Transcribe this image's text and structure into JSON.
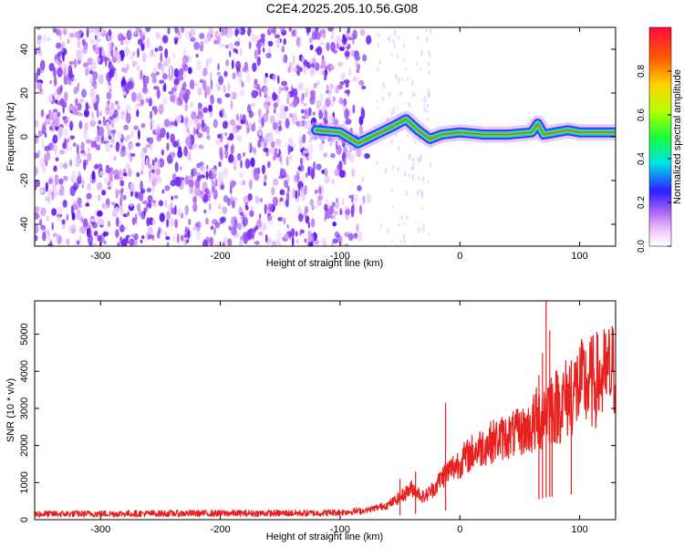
{
  "title": "C2E4.2025.205.10.56.G08",
  "chart_data": [
    {
      "type": "heatmap",
      "xlabel": "Height of straight line (km)",
      "ylabel": "Frequency (Hz)",
      "xlim": [
        -355,
        130
      ],
      "ylim": [
        -50,
        50
      ],
      "xticks": [
        -300,
        -200,
        -100,
        0,
        100
      ],
      "yticks": [
        -40,
        -20,
        0,
        20,
        40
      ],
      "noise_region_x": [
        -355,
        -75
      ],
      "signal_track": {
        "x": [
          -120,
          -100,
          -85,
          -70,
          -55,
          -45,
          -35,
          -25,
          -15,
          0,
          20,
          40,
          60,
          65,
          70,
          80,
          90,
          100,
          130
        ],
        "y": [
          3,
          2,
          -3,
          1,
          5,
          8,
          3,
          -1,
          1,
          2,
          1,
          1,
          2,
          6,
          1,
          2,
          3,
          2,
          2
        ]
      },
      "colorbar": {
        "label": "Normalized spectral amplitude",
        "range": [
          0.0,
          1.0
        ],
        "ticks": [
          "0.0",
          "0.2",
          "0.4",
          "0.6",
          "0.8"
        ]
      }
    },
    {
      "type": "line",
      "xlabel": "Height of straight line (km)",
      "ylabel": "SNR (10 * v/v)",
      "xlim": [
        -355,
        130
      ],
      "ylim": [
        0,
        5900
      ],
      "xticks": [
        -300,
        -200,
        -100,
        0,
        100
      ],
      "yticks": [
        0,
        1000,
        2000,
        3000,
        4000,
        5000
      ],
      "color": "#e8211e",
      "series": [
        {
          "x": [
            -355,
            -300,
            -200,
            -120,
            -100,
            -80,
            -60,
            -50,
            -40,
            -30,
            -20,
            -15,
            -10,
            0,
            10,
            20,
            30,
            40,
            50,
            60,
            62,
            68,
            72,
            75,
            80,
            85,
            90,
            95,
            100,
            110,
            120,
            130
          ],
          "y": [
            150,
            160,
            170,
            175,
            200,
            240,
            400,
            600,
            850,
            600,
            900,
            1150,
            1300,
            1550,
            1800,
            2000,
            2150,
            2250,
            2350,
            2500,
            2600,
            2800,
            3000,
            3100,
            3050,
            3150,
            3300,
            3450,
            3600,
            3700,
            3850,
            4050
          ]
        }
      ],
      "spikes": [
        {
          "x": -50,
          "y": 1100
        },
        {
          "x": -37,
          "y": 1300
        },
        {
          "x": -12,
          "y": 3150
        },
        {
          "x": 66,
          "y": 3900
        },
        {
          "x": 69,
          "y": 4500
        },
        {
          "x": 72,
          "y": 5900
        },
        {
          "x": 75,
          "y": 5100
        },
        {
          "x": 77,
          "y": 3600
        },
        {
          "x": 93,
          "y": 4300
        }
      ]
    }
  ]
}
